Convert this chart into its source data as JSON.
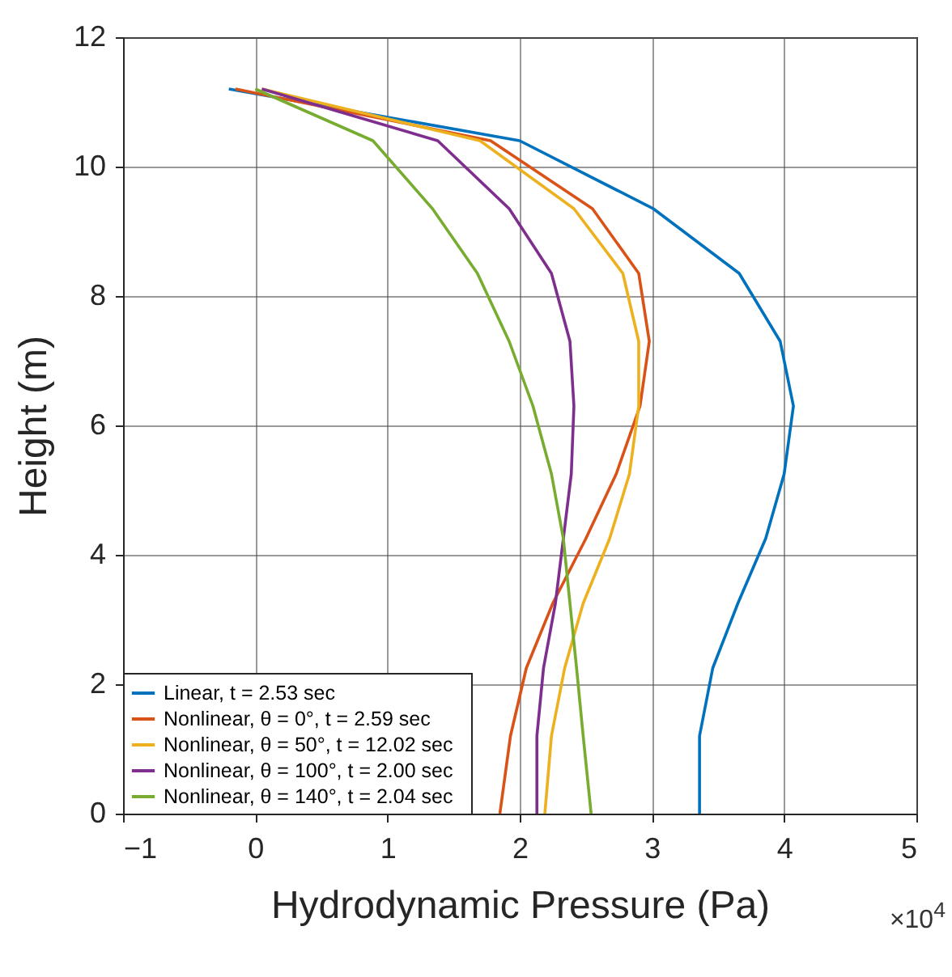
{
  "chart_data": {
    "type": "line",
    "xlabel": "Hydrodynamic Pressure (Pa)",
    "ylabel": "Height (m)",
    "xlim": [
      -1,
      5
    ],
    "xticks": [
      -1,
      0,
      1,
      2,
      3,
      4,
      5
    ],
    "ylim": [
      0,
      12
    ],
    "yticks": [
      0,
      2,
      4,
      6,
      8,
      10,
      12
    ],
    "grid": true,
    "legend": "bottom left",
    "line_style": "solid",
    "marker": "none",
    "annotations": [
      "×10$^{4}$"
    ],
    "series": [
      {
        "name": "Linear, t = 2.53 sec",
        "color": "#0072bd",
        "x": [
          3.36,
          3.36,
          3.46,
          3.65,
          3.86,
          4.0,
          4.07,
          3.97,
          3.66,
          3.01,
          2.0,
          -0.2
        ],
        "values": [
          0,
          1.2,
          2.25,
          3.25,
          4.25,
          5.25,
          6.3,
          7.3,
          8.35,
          9.35,
          10.4,
          11.2
        ]
      },
      {
        "name": "Nonlinear,  θ = 0°, t = 2.59 sec",
        "color": "#d95319",
        "x": [
          1.85,
          1.93,
          2.05,
          2.25,
          2.5,
          2.73,
          2.91,
          2.98,
          2.9,
          2.55,
          1.78,
          -0.15
        ],
        "values": [
          0,
          1.2,
          2.25,
          3.25,
          4.25,
          5.25,
          6.3,
          7.3,
          8.35,
          9.35,
          10.4,
          11.2
        ]
      },
      {
        "name": "Nonlinear,  θ = 50°,  t = 12.02 sec",
        "color": "#edb120",
        "x": [
          2.19,
          2.24,
          2.34,
          2.48,
          2.68,
          2.83,
          2.9,
          2.9,
          2.78,
          2.41,
          1.7,
          0.05
        ],
        "values": [
          0,
          1.2,
          2.25,
          3.25,
          4.25,
          5.25,
          6.3,
          7.3,
          8.35,
          9.35,
          10.4,
          11.2
        ]
      },
      {
        "name": "Nonlinear,  θ = 100°, t = 2.00 sec",
        "color": "#7e2f8e",
        "x": [
          2.13,
          2.13,
          2.18,
          2.27,
          2.33,
          2.39,
          2.41,
          2.38,
          2.24,
          1.92,
          1.38,
          0.05
        ],
        "values": [
          0,
          1.2,
          2.25,
          3.25,
          4.25,
          5.25,
          6.3,
          7.3,
          8.35,
          9.35,
          10.4,
          11.2
        ]
      },
      {
        "name": "Nonlinear,  θ = 140°, t = 2.04 sec",
        "color": "#77ac30",
        "x": [
          2.54,
          2.48,
          2.43,
          2.38,
          2.33,
          2.24,
          2.1,
          1.92,
          1.68,
          1.34,
          0.89,
          0.0
        ],
        "values": [
          0,
          1.2,
          2.25,
          3.25,
          4.25,
          5.25,
          6.3,
          7.3,
          8.35,
          9.35,
          10.4,
          11.2
        ]
      }
    ]
  }
}
